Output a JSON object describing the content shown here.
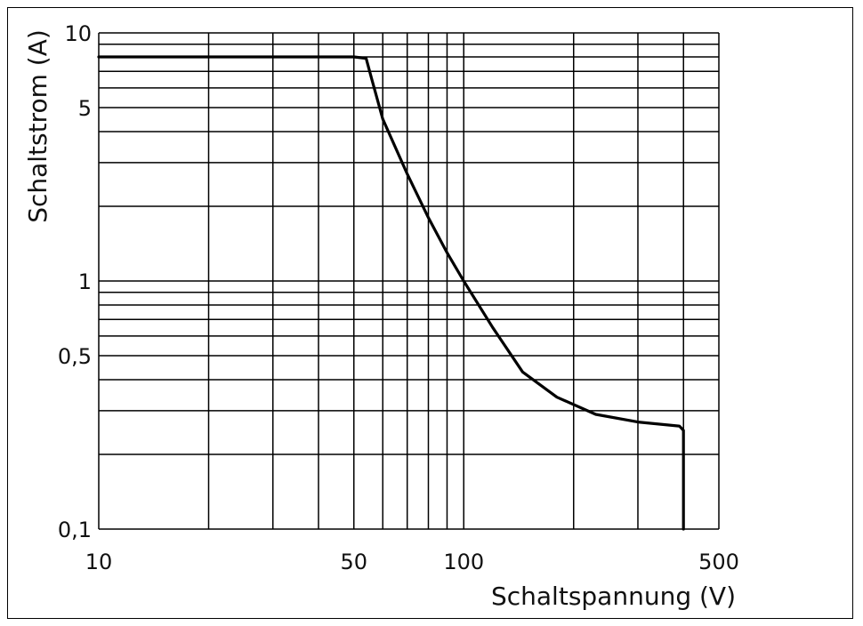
{
  "chart_data": {
    "type": "line",
    "xlabel": "Schaltspannung (V)",
    "ylabel": "Schaltstrom (A)",
    "x_scale": "log",
    "y_scale": "log",
    "xlim": [
      10,
      500
    ],
    "ylim": [
      0.1,
      10
    ],
    "x_ticks": [
      {
        "value": 10,
        "label": "10"
      },
      {
        "value": 50,
        "label": "50"
      },
      {
        "value": 100,
        "label": "100"
      },
      {
        "value": 500,
        "label": "500"
      }
    ],
    "y_ticks": [
      {
        "value": 10,
        "label": "10"
      },
      {
        "value": 5,
        "label": "5"
      },
      {
        "value": 1,
        "label": "1"
      },
      {
        "value": 0.5,
        "label": "0,5"
      },
      {
        "value": 0.1,
        "label": "0,1"
      }
    ],
    "x_grid": [
      20,
      30,
      40,
      50,
      60,
      70,
      80,
      90,
      100,
      200,
      300,
      400,
      500
    ],
    "y_grid": [
      0.2,
      0.3,
      0.4,
      0.5,
      0.6,
      0.7,
      0.8,
      0.9,
      1,
      2,
      3,
      4,
      5,
      6,
      7,
      8,
      9,
      10
    ],
    "grid": true,
    "series": [
      {
        "color": "#000000",
        "x": [
          10,
          50,
          54,
          56,
          60,
          70,
          80,
          90,
          100,
          120,
          145,
          180,
          230,
          300,
          390,
          400,
          400
        ],
        "y": [
          8,
          8,
          7.9,
          6.5,
          4.5,
          2.7,
          1.8,
          1.3,
          1.0,
          0.65,
          0.43,
          0.34,
          0.29,
          0.27,
          0.26,
          0.25,
          0.1
        ]
      }
    ]
  }
}
